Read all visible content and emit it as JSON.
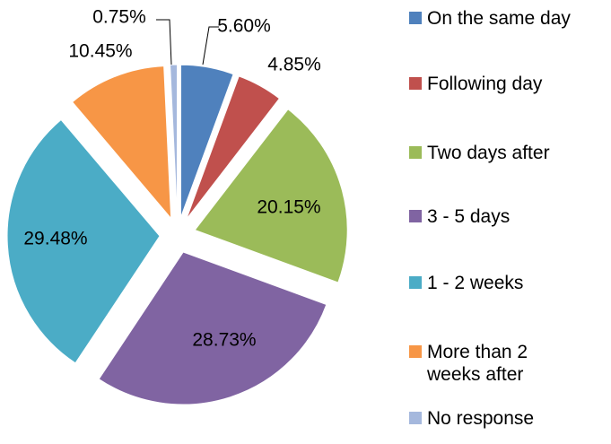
{
  "chart_data": {
    "type": "pie",
    "categories": [
      "On the same day",
      "Following day",
      "Two days after",
      "3 - 5 days",
      "1 - 2 weeks",
      "More than 2 weeks after",
      "No response"
    ],
    "values": [
      5.6,
      4.85,
      20.15,
      28.73,
      29.48,
      10.45,
      0.75
    ],
    "value_labels": [
      "5.60%",
      "4.85%",
      "20.15%",
      "28.73%",
      "29.48%",
      "10.45%",
      "0.75%"
    ],
    "colors": [
      "#4f81bd",
      "#c0504d",
      "#9bbb59",
      "#8064a2",
      "#4bacc6",
      "#f79646",
      "#a5b8dd"
    ],
    "legend": "right"
  }
}
